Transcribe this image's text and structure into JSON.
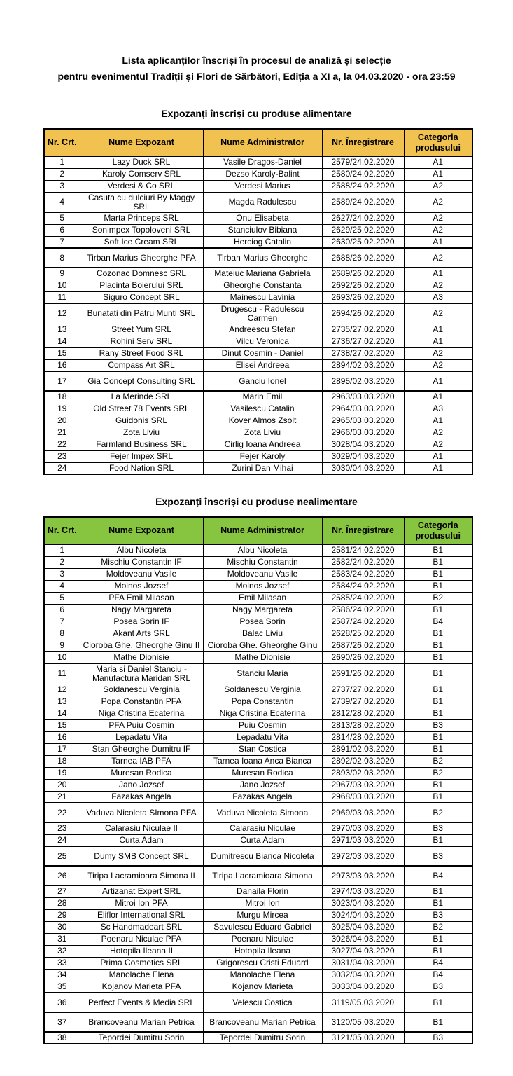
{
  "page": {
    "title_line1": "Lista aplicanților înscriși în procesul de analiză și selecție",
    "title_line2": "pentru evenimentul Tradiții și Flori de Sărbători, Ediția a XI a, la 04.03.2020 - ora 23:59"
  },
  "tables": [
    {
      "section_title": "Expozanți înscriși cu produse alimentare",
      "header_color": "#F1C24F",
      "columns": [
        "Nr. Crt.",
        "Nume Expozant",
        "Nume Administrator",
        "Nr. Înregistrare",
        "Categoria produsului"
      ],
      "rows": [
        {
          "nr": "1",
          "expozant": "Lazy Duck SRL",
          "administrator": "Vasile Dragos-Daniel",
          "inregistrare": "2579/24.02.2020",
          "categoria": "A1",
          "tall": false
        },
        {
          "nr": "2",
          "expozant": "Karoly Comserv SRL",
          "administrator": "Dezso Karoly-Balint",
          "inregistrare": "2580/24.02.2020",
          "categoria": "A1",
          "tall": false
        },
        {
          "nr": "3",
          "expozant": "Verdesi & Co SRL",
          "administrator": "Verdesi Marius",
          "inregistrare": "2588/24.02.2020",
          "categoria": "A2",
          "tall": false
        },
        {
          "nr": "4",
          "expozant": "Casuta cu dulciuri By Maggy SRL",
          "administrator": "Magda Radulescu",
          "inregistrare": "2589/24.02.2020",
          "categoria": "A2",
          "tall": false
        },
        {
          "nr": "5",
          "expozant": "Marta Princeps SRL",
          "administrator": "Onu Elisabeta",
          "inregistrare": "2627/24.02.2020",
          "categoria": "A2",
          "tall": false
        },
        {
          "nr": "6",
          "expozant": "Sonimpex Topoloveni SRL",
          "administrator": "Stanciulov Bibiana",
          "inregistrare": "2629/25.02.2020",
          "categoria": "A2",
          "tall": false
        },
        {
          "nr": "7",
          "expozant": "Soft Ice Cream SRL",
          "administrator": "Herciog Catalin",
          "inregistrare": "2630/25.02.2020",
          "categoria": "A1",
          "tall": false
        },
        {
          "nr": "8",
          "expozant": "Tirban Marius Gheorghe PFA",
          "administrator": "Tirban Marius Gheorghe",
          "inregistrare": "2688/26.02.2020",
          "categoria": "A2",
          "tall": true
        },
        {
          "nr": "9",
          "expozant": "Cozonac Domnesc SRL",
          "administrator": "Mateiuc Mariana Gabriela",
          "inregistrare": "2689/26.02.2020",
          "categoria": "A1",
          "tall": false
        },
        {
          "nr": "10",
          "expozant": "Placinta Boierului SRL",
          "administrator": "Gheorghe Constanta",
          "inregistrare": "2692/26.02.2020",
          "categoria": "A2",
          "tall": false
        },
        {
          "nr": "11",
          "expozant": "Siguro Concept SRL",
          "administrator": "Mainescu Lavinia",
          "inregistrare": "2693/26.02.2020",
          "categoria": "A3",
          "tall": false
        },
        {
          "nr": "12",
          "expozant": "Bunatati din Patru Munti SRL",
          "administrator": "Drugescu - Radulescu Carmen",
          "inregistrare": "2694/26.02.2020",
          "categoria": "A2",
          "tall": false
        },
        {
          "nr": "13",
          "expozant": "Street Yum SRL",
          "administrator": "Andreescu Stefan",
          "inregistrare": "2735/27.02.2020",
          "categoria": "A1",
          "tall": false
        },
        {
          "nr": "14",
          "expozant": "Rohini Serv SRL",
          "administrator": "Vilcu Veronica",
          "inregistrare": "2736/27.02.2020",
          "categoria": "A1",
          "tall": false
        },
        {
          "nr": "15",
          "expozant": "Rany Street Food SRL",
          "administrator": "Dinut Cosmin - Daniel",
          "inregistrare": "2738/27.02.2020",
          "categoria": "A2",
          "tall": false
        },
        {
          "nr": "16",
          "expozant": "Compass Art SRL",
          "administrator": "Elisei Andreea",
          "inregistrare": "2894/02.03.2020",
          "categoria": "A2",
          "tall": false
        },
        {
          "nr": "17",
          "expozant": "Gia Concept Consulting SRL",
          "administrator": "Ganciu Ionel",
          "inregistrare": "2895/02.03.2020",
          "categoria": "A1",
          "tall": true
        },
        {
          "nr": "18",
          "expozant": "La Merinde SRL",
          "administrator": "Marin Emil",
          "inregistrare": "2963/03.03.2020",
          "categoria": "A1",
          "tall": false
        },
        {
          "nr": "19",
          "expozant": "Old Street 78 Events SRL",
          "administrator": "Vasilescu Catalin",
          "inregistrare": "2964/03.03.2020",
          "categoria": "A3",
          "tall": false
        },
        {
          "nr": "20",
          "expozant": "Guidonis SRL",
          "administrator": "Kover Almos Zsolt",
          "inregistrare": "2965/03.03.2020",
          "categoria": "A1",
          "tall": false
        },
        {
          "nr": "21",
          "expozant": "Zota Liviu",
          "administrator": "Zota Liviu",
          "inregistrare": "2966/03.03.2020",
          "categoria": "A2",
          "tall": false
        },
        {
          "nr": "22",
          "expozant": "Farmland Business SRL",
          "administrator": "Cirlig Ioana Andreea",
          "inregistrare": "3028/04.03.2020",
          "categoria": "A2",
          "tall": false
        },
        {
          "nr": "23",
          "expozant": "Fejer Impex SRL",
          "administrator": "Fejer Karoly",
          "inregistrare": "3029/04.03.2020",
          "categoria": "A1",
          "tall": false
        },
        {
          "nr": "24",
          "expozant": "Food Nation SRL",
          "administrator": "Zurini Dan Mihai",
          "inregistrare": "3030/04.03.2020",
          "categoria": "A1",
          "tall": false
        }
      ]
    },
    {
      "section_title": "Expozanți înscriși cu produse nealimentare",
      "header_color": "#87C540",
      "columns": [
        "Nr. Crt.",
        "Nume Expozant",
        "Nume Administrator",
        "Nr. Înregistrare",
        "Categoria produsului"
      ],
      "rows": [
        {
          "nr": "1",
          "expozant": "Albu Nicoleta",
          "administrator": "Albu Nicoleta",
          "inregistrare": "2581/24.02.2020",
          "categoria": "B1",
          "tall": false
        },
        {
          "nr": "2",
          "expozant": "Mischiu Constantin IF",
          "administrator": "Mischiu Constantin",
          "inregistrare": "2582/24.02.2020",
          "categoria": "B1",
          "tall": false
        },
        {
          "nr": "3",
          "expozant": "Moldoveanu Vasile",
          "administrator": "Moldoveanu Vasile",
          "inregistrare": "2583/24.02.2020",
          "categoria": "B1",
          "tall": false
        },
        {
          "nr": "4",
          "expozant": "Molnos Jozsef",
          "administrator": "Molnos Jozsef",
          "inregistrare": "2584/24.02.2020",
          "categoria": "B1",
          "tall": false
        },
        {
          "nr": "5",
          "expozant": "PFA Emil Milasan",
          "administrator": "Emil Milasan",
          "inregistrare": "2585/24.02.2020",
          "categoria": "B2",
          "tall": false
        },
        {
          "nr": "6",
          "expozant": "Nagy Margareta",
          "administrator": "Nagy Margareta",
          "inregistrare": "2586/24.02.2020",
          "categoria": "B1",
          "tall": false
        },
        {
          "nr": "7",
          "expozant": "Posea Sorin IF",
          "administrator": "Posea Sorin",
          "inregistrare": "2587/24.02.2020",
          "categoria": "B4",
          "tall": false
        },
        {
          "nr": "8",
          "expozant": "Akant Arts SRL",
          "administrator": "Balac Liviu",
          "inregistrare": "2628/25.02.2020",
          "categoria": "B1",
          "tall": false
        },
        {
          "nr": "9",
          "expozant": "Cioroba Ghe. Gheorghe Ginu II",
          "administrator": "Cioroba Ghe. Gheorghe Ginu",
          "inregistrare": "2687/26.02.2020",
          "categoria": "B1",
          "tall": false
        },
        {
          "nr": "10",
          "expozant": "Mathe Dionisie",
          "administrator": "Mathe Dionisie",
          "inregistrare": "2690/26.02.2020",
          "categoria": "B1",
          "tall": false
        },
        {
          "nr": "11",
          "expozant": "Maria si Daniel Stanciu - Manufactura Maridan SRL",
          "administrator": "Stanciu Maria",
          "inregistrare": "2691/26.02.2020",
          "categoria": "B1",
          "tall": false
        },
        {
          "nr": "12",
          "expozant": "Soldanescu Verginia",
          "administrator": "Soldanescu Verginia",
          "inregistrare": "2737/27.02.2020",
          "categoria": "B1",
          "tall": false
        },
        {
          "nr": "13",
          "expozant": "Popa Constantin PFA",
          "administrator": "Popa Constantin",
          "inregistrare": "2739/27.02.2020",
          "categoria": "B1",
          "tall": false
        },
        {
          "nr": "14",
          "expozant": "Niga Cristina Ecaterina",
          "administrator": "Niga Cristina Ecaterina",
          "inregistrare": "2812/28.02.2020",
          "categoria": "B1",
          "tall": false
        },
        {
          "nr": "15",
          "expozant": "PFA Puiu Cosmin",
          "administrator": "Puiu Cosmin",
          "inregistrare": "2813/28.02.2020",
          "categoria": "B3",
          "tall": false
        },
        {
          "nr": "16",
          "expozant": "Lepadatu Vita",
          "administrator": "Lepadatu Vita",
          "inregistrare": "2814/28.02.2020",
          "categoria": "B1",
          "tall": false
        },
        {
          "nr": "17",
          "expozant": "Stan Gheorghe Dumitru  IF",
          "administrator": "Stan Costica",
          "inregistrare": "2891/02.03.2020",
          "categoria": "B1",
          "tall": false
        },
        {
          "nr": "18",
          "expozant": "Tarnea IAB PFA",
          "administrator": "Tarnea Ioana Anca Bianca",
          "inregistrare": "2892/02.03.2020",
          "categoria": "B2",
          "tall": false
        },
        {
          "nr": "19",
          "expozant": "Muresan Rodica",
          "administrator": "Muresan Rodica",
          "inregistrare": "2893/02.03.2020",
          "categoria": "B2",
          "tall": false
        },
        {
          "nr": "20",
          "expozant": "Jano Jozsef",
          "administrator": "Jano Jozsef",
          "inregistrare": "2967/03.03.2020",
          "categoria": "B1",
          "tall": false
        },
        {
          "nr": "21",
          "expozant": "Fazakas Angela",
          "administrator": "Fazakas Angela",
          "inregistrare": "2968/03.03.2020",
          "categoria": "B1",
          "tall": false
        },
        {
          "nr": "22",
          "expozant": "Vaduva Nicoleta SImona PFA",
          "administrator": "Vaduva Nicoleta Simona",
          "inregistrare": "2969/03.03.2020",
          "categoria": "B2",
          "tall": true
        },
        {
          "nr": "23",
          "expozant": "Calarasiu Niculae II",
          "administrator": "Calarasiu Niculae",
          "inregistrare": "2970/03.03.2020",
          "categoria": "B3",
          "tall": false
        },
        {
          "nr": "24",
          "expozant": "Curta Adam",
          "administrator": "Curta Adam",
          "inregistrare": "2971/03.03.2020",
          "categoria": "B1",
          "tall": false
        },
        {
          "nr": "25",
          "expozant": "Dumy SMB Concept SRL",
          "administrator": "Dumitrescu Bianca Nicoleta",
          "inregistrare": "2972/03.03.2020",
          "categoria": "B3",
          "tall": true
        },
        {
          "nr": "26",
          "expozant": "Tiripa Lacramioara Simona II",
          "administrator": "Tiripa Lacramioara Simona",
          "inregistrare": "2973/03.03.2020",
          "categoria": "B4",
          "tall": true
        },
        {
          "nr": "27",
          "expozant": "Artizanat Expert SRL",
          "administrator": "Danaila Florin",
          "inregistrare": "2974/03.03.2020",
          "categoria": "B1",
          "tall": false
        },
        {
          "nr": "28",
          "expozant": "Mitroi Ion PFA",
          "administrator": "Mitroi Ion",
          "inregistrare": "3023/04.03.2020",
          "categoria": "B1",
          "tall": false
        },
        {
          "nr": "29",
          "expozant": "Eliflor International SRL",
          "administrator": "Murgu Mircea",
          "inregistrare": "3024/04.03.2020",
          "categoria": "B3",
          "tall": false
        },
        {
          "nr": "30",
          "expozant": "Sc Handmadeart SRL",
          "administrator": "Savulescu Eduard Gabriel",
          "inregistrare": "3025/04.03.2020",
          "categoria": "B2",
          "tall": false
        },
        {
          "nr": "31",
          "expozant": "Poenaru Niculae PFA",
          "administrator": "Poenaru Niculae",
          "inregistrare": "3026/04.03.2020",
          "categoria": "B1",
          "tall": false
        },
        {
          "nr": "32",
          "expozant": "Hotopila Ileana II",
          "administrator": "Hotopila Ileana",
          "inregistrare": "3027/04.03.2020",
          "categoria": "B1",
          "tall": false
        },
        {
          "nr": "33",
          "expozant": "Prima Cosmetics SRL",
          "administrator": "Grigorescu Cristi Eduard",
          "inregistrare": "3031/04.03.2020",
          "categoria": "B4",
          "tall": false
        },
        {
          "nr": "34",
          "expozant": "Manolache Elena",
          "administrator": "Manolache Elena",
          "inregistrare": "3032/04.03.2020",
          "categoria": "B4",
          "tall": false
        },
        {
          "nr": "35",
          "expozant": "Kojanov Marieta PFA",
          "administrator": "Kojanov Marieta",
          "inregistrare": "3033/04.03.2020",
          "categoria": "B3",
          "tall": false
        },
        {
          "nr": "36",
          "expozant": "Perfect Events & Media SRL",
          "administrator": "Velescu Costica",
          "inregistrare": "3119/05.03.2020",
          "categoria": "B1",
          "tall": true
        },
        {
          "nr": "37",
          "expozant": "Brancoveanu Marian Petrica",
          "administrator": "Brancoveanu Marian Petrica",
          "inregistrare": "3120/05.03.2020",
          "categoria": "B1",
          "tall": true
        },
        {
          "nr": "38",
          "expozant": "Tepordei Dumitru Sorin",
          "administrator": "Tepordei Dumitru Sorin",
          "inregistrare": "3121/05.03.2020",
          "categoria": "B3",
          "tall": false
        }
      ]
    }
  ]
}
